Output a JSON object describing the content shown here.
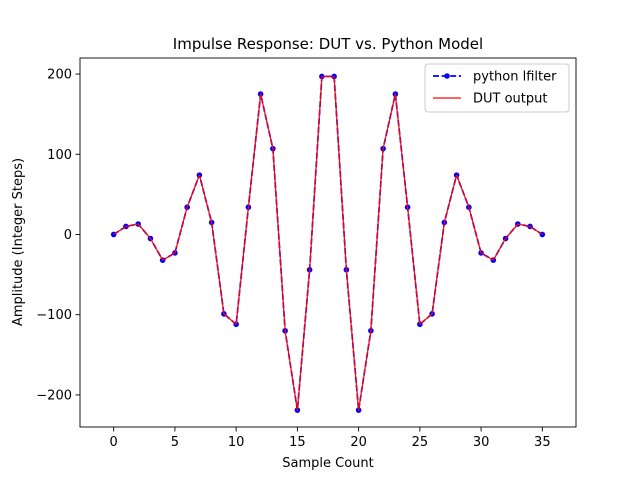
{
  "chart_data": {
    "type": "line",
    "title": "Impulse Response: DUT vs. Python Model",
    "xlabel": "Sample Count",
    "ylabel": "Amplitude (Integer Steps)",
    "xlim": [
      -2.75,
      37.75
    ],
    "ylim": [
      -240,
      220
    ],
    "xticks": [
      0,
      5,
      10,
      15,
      20,
      25,
      30,
      35
    ],
    "xtick_labels": [
      "0",
      "5",
      "10",
      "15",
      "20",
      "25",
      "30",
      "35"
    ],
    "yticks": [
      -200,
      -100,
      0,
      100,
      200
    ],
    "ytick_labels": [
      "−200",
      "−100",
      "0",
      "100",
      "200"
    ],
    "grid": false,
    "legend_position": "top-right",
    "x": [
      0,
      1,
      2,
      3,
      4,
      5,
      6,
      7,
      8,
      9,
      10,
      11,
      12,
      13,
      14,
      15,
      16,
      17,
      18,
      19,
      20,
      21,
      22,
      23,
      24,
      25,
      26,
      27,
      28,
      29,
      30,
      31,
      32,
      33,
      34,
      35
    ],
    "series": [
      {
        "name": "python lfilter",
        "color": "#0000ff",
        "style": "dashed-markers",
        "values": [
          0,
          10,
          13,
          -5,
          -32,
          -23,
          34,
          74,
          15,
          -99,
          -112,
          34,
          175,
          107,
          -120,
          -219,
          -44,
          197,
          197,
          -44,
          -219,
          -120,
          107,
          175,
          34,
          -112,
          -99,
          15,
          74,
          34,
          -23,
          -32,
          -5,
          13,
          10,
          0
        ]
      },
      {
        "name": "DUT output",
        "color": "#ff0000",
        "style": "solid",
        "values": [
          0,
          10,
          13,
          -5,
          -32,
          -23,
          34,
          74,
          15,
          -99,
          -112,
          34,
          175,
          107,
          -120,
          -219,
          -44,
          197,
          197,
          -44,
          -219,
          -120,
          107,
          175,
          34,
          -112,
          -99,
          15,
          74,
          34,
          -23,
          -32,
          -5,
          13,
          10,
          0
        ]
      }
    ]
  }
}
